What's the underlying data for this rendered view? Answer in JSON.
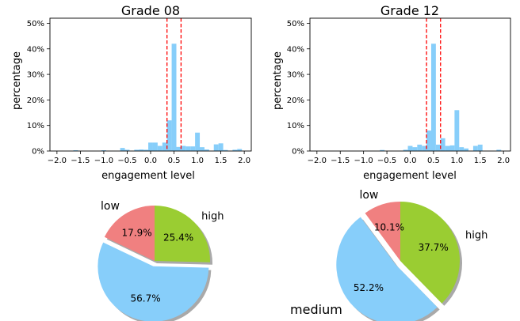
{
  "chart_data": [
    {
      "id": "hist_08",
      "type": "bar",
      "title": "Grade 08",
      "xlabel": "engagement level",
      "ylabel": "percentage",
      "xlim": [
        -2.15,
        2.15
      ],
      "ylim": [
        0,
        52
      ],
      "x_ticks": [
        -2.0,
        -1.5,
        -1.0,
        -0.5,
        0.0,
        0.5,
        1.0,
        1.5,
        2.0
      ],
      "x_tick_labels": [
        "−2.0",
        "−1.5",
        "−1.0",
        "−0.5",
        "0.0",
        "0.5",
        "1.0",
        "1.5",
        "2.0"
      ],
      "y_ticks": [
        0,
        10,
        20,
        30,
        40,
        50
      ],
      "y_tick_labels": [
        "0%",
        "10%",
        "20%",
        "30%",
        "40%",
        "50%"
      ],
      "bar_color": "#87cefa",
      "bin_width": 0.1,
      "bins": [
        {
          "x": -1.6,
          "y": 0.3
        },
        {
          "x": -1.0,
          "y": 0.3
        },
        {
          "x": -0.6,
          "y": 1.2
        },
        {
          "x": -0.5,
          "y": 0.5
        },
        {
          "x": -0.3,
          "y": 0.5
        },
        {
          "x": -0.2,
          "y": 0.6
        },
        {
          "x": -0.1,
          "y": 0.5
        },
        {
          "x": 0.0,
          "y": 3.3
        },
        {
          "x": 0.1,
          "y": 3.3
        },
        {
          "x": 0.2,
          "y": 2.0
        },
        {
          "x": 0.3,
          "y": 3.3
        },
        {
          "x": 0.4,
          "y": 12.0
        },
        {
          "x": 0.5,
          "y": 42.0
        },
        {
          "x": 0.6,
          "y": 1.6
        },
        {
          "x": 0.7,
          "y": 2.0
        },
        {
          "x": 0.8,
          "y": 1.8
        },
        {
          "x": 0.9,
          "y": 1.8
        },
        {
          "x": 1.0,
          "y": 7.2
        },
        {
          "x": 1.1,
          "y": 1.5
        },
        {
          "x": 1.2,
          "y": 0.6
        },
        {
          "x": 1.4,
          "y": 2.6
        },
        {
          "x": 1.5,
          "y": 3.0
        },
        {
          "x": 1.6,
          "y": 0.4
        },
        {
          "x": 1.8,
          "y": 0.5
        },
        {
          "x": 1.9,
          "y": 0.8
        }
      ],
      "vlines": [
        0.35,
        0.65
      ],
      "vline_color": "#ff0000",
      "vline_style": "dashed"
    },
    {
      "id": "hist_12",
      "type": "bar",
      "title": "Grade 12",
      "xlabel": "engagement level",
      "ylabel": "percentage",
      "xlim": [
        -2.15,
        2.15
      ],
      "ylim": [
        0,
        52
      ],
      "x_ticks": [
        -2.0,
        -1.5,
        -1.0,
        -0.5,
        0.0,
        0.5,
        1.0,
        1.5,
        2.0
      ],
      "x_tick_labels": [
        "−2.0",
        "−1.5",
        "−1.0",
        "−0.5",
        "0.0",
        "0.5",
        "1.0",
        "1.5",
        "2.0"
      ],
      "y_ticks": [
        0,
        10,
        20,
        30,
        40,
        50
      ],
      "y_tick_labels": [
        "0%",
        "10%",
        "20%",
        "30%",
        "40%",
        "50%"
      ],
      "bar_color": "#87cefa",
      "bin_width": 0.1,
      "bins": [
        {
          "x": -0.6,
          "y": 0.4
        },
        {
          "x": -0.1,
          "y": 0.5
        },
        {
          "x": 0.0,
          "y": 2.0
        },
        {
          "x": 0.1,
          "y": 1.5
        },
        {
          "x": 0.2,
          "y": 2.5
        },
        {
          "x": 0.3,
          "y": 2.0
        },
        {
          "x": 0.4,
          "y": 8.0
        },
        {
          "x": 0.5,
          "y": 42.0
        },
        {
          "x": 0.6,
          "y": 2.5
        },
        {
          "x": 0.7,
          "y": 5.0
        },
        {
          "x": 0.8,
          "y": 2.0
        },
        {
          "x": 0.9,
          "y": 2.2
        },
        {
          "x": 1.0,
          "y": 16.0
        },
        {
          "x": 1.1,
          "y": 1.5
        },
        {
          "x": 1.2,
          "y": 1.0
        },
        {
          "x": 1.4,
          "y": 2.0
        },
        {
          "x": 1.5,
          "y": 2.5
        },
        {
          "x": 1.9,
          "y": 0.5
        }
      ],
      "vlines": [
        0.35,
        0.65
      ],
      "vline_color": "#ff0000",
      "vline_style": "dashed"
    },
    {
      "id": "pie_08",
      "type": "pie",
      "slices": [
        {
          "label": "high",
          "value": 25.4,
          "pct_label": "25.4%",
          "color": "#9acd32",
          "exploded": false
        },
        {
          "label": "medium",
          "value": 56.7,
          "pct_label": "56.7%",
          "color": "#87cefa",
          "exploded": true
        },
        {
          "label": "low",
          "value": 17.9,
          "pct_label": "17.9%",
          "color": "#f08080",
          "exploded": false
        }
      ],
      "start_angle_deg": 90,
      "direction": "clockwise",
      "shadow": true
    },
    {
      "id": "pie_12",
      "type": "pie",
      "slices": [
        {
          "label": "high",
          "value": 37.7,
          "pct_label": "37.7%",
          "color": "#9acd32",
          "exploded": false
        },
        {
          "label": "medium",
          "value": 52.2,
          "pct_label": "52.2%",
          "color": "#87cefa",
          "exploded": true
        },
        {
          "label": "low",
          "value": 10.1,
          "pct_label": "10.1%",
          "color": "#f08080",
          "exploded": false
        }
      ],
      "start_angle_deg": 90,
      "direction": "clockwise",
      "shadow": true
    }
  ]
}
